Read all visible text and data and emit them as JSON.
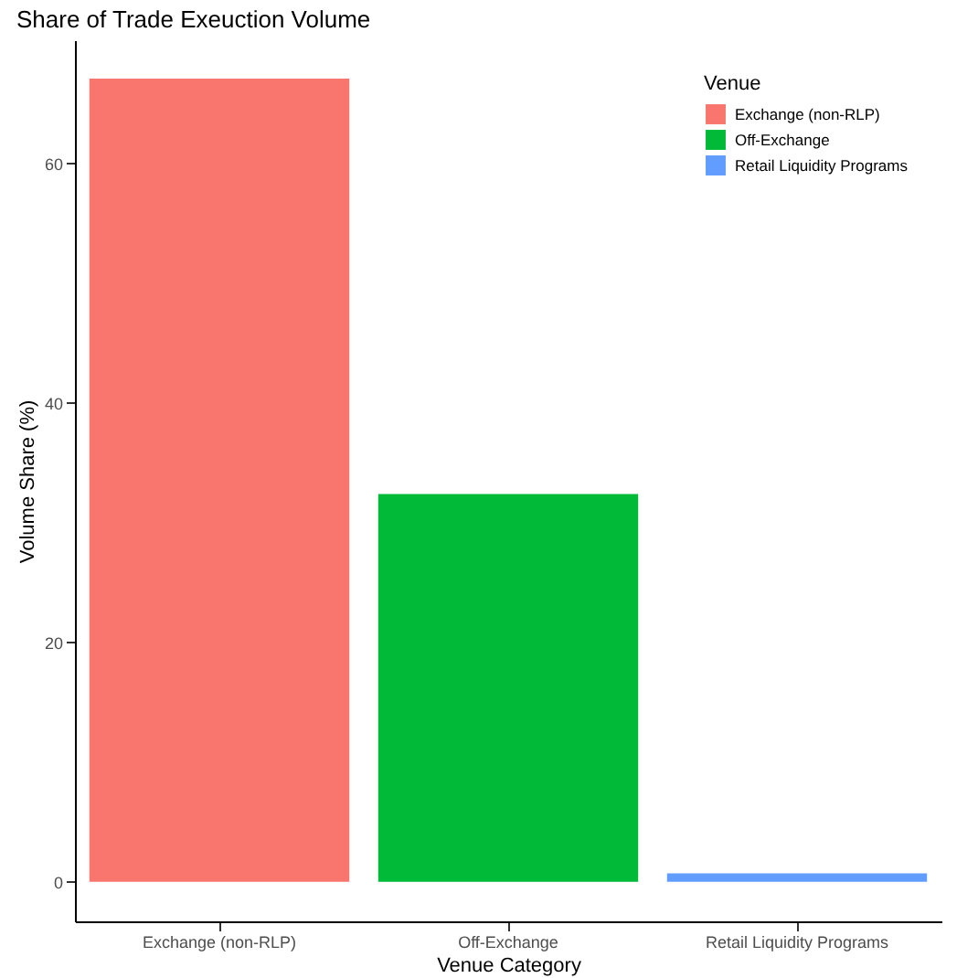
{
  "chart_data": {
    "type": "bar",
    "title": "Share of Trade Exeuction Volume",
    "xlabel": "Venue Category",
    "ylabel": "Volume Share (%)",
    "legend_title": "Venue",
    "categories": [
      "Exchange (non-RLP)",
      "Off-Exchange",
      "Retail Liquidity Programs"
    ],
    "series": [
      {
        "name": "Exchange (non-RLP)",
        "color": "#f8766d",
        "values": [
          67.1,
          null,
          null
        ]
      },
      {
        "name": "Off-Exchange",
        "color": "#00ba38",
        "values": [
          null,
          32.4,
          null
        ]
      },
      {
        "name": "Retail Liquidity Programs",
        "color": "#619cff",
        "values": [
          null,
          null,
          0.7
        ]
      }
    ],
    "ylim": [
      -3.3,
      70.3
    ],
    "yticks": [
      0,
      20,
      40,
      60
    ],
    "grid": false,
    "legend": "top right"
  }
}
